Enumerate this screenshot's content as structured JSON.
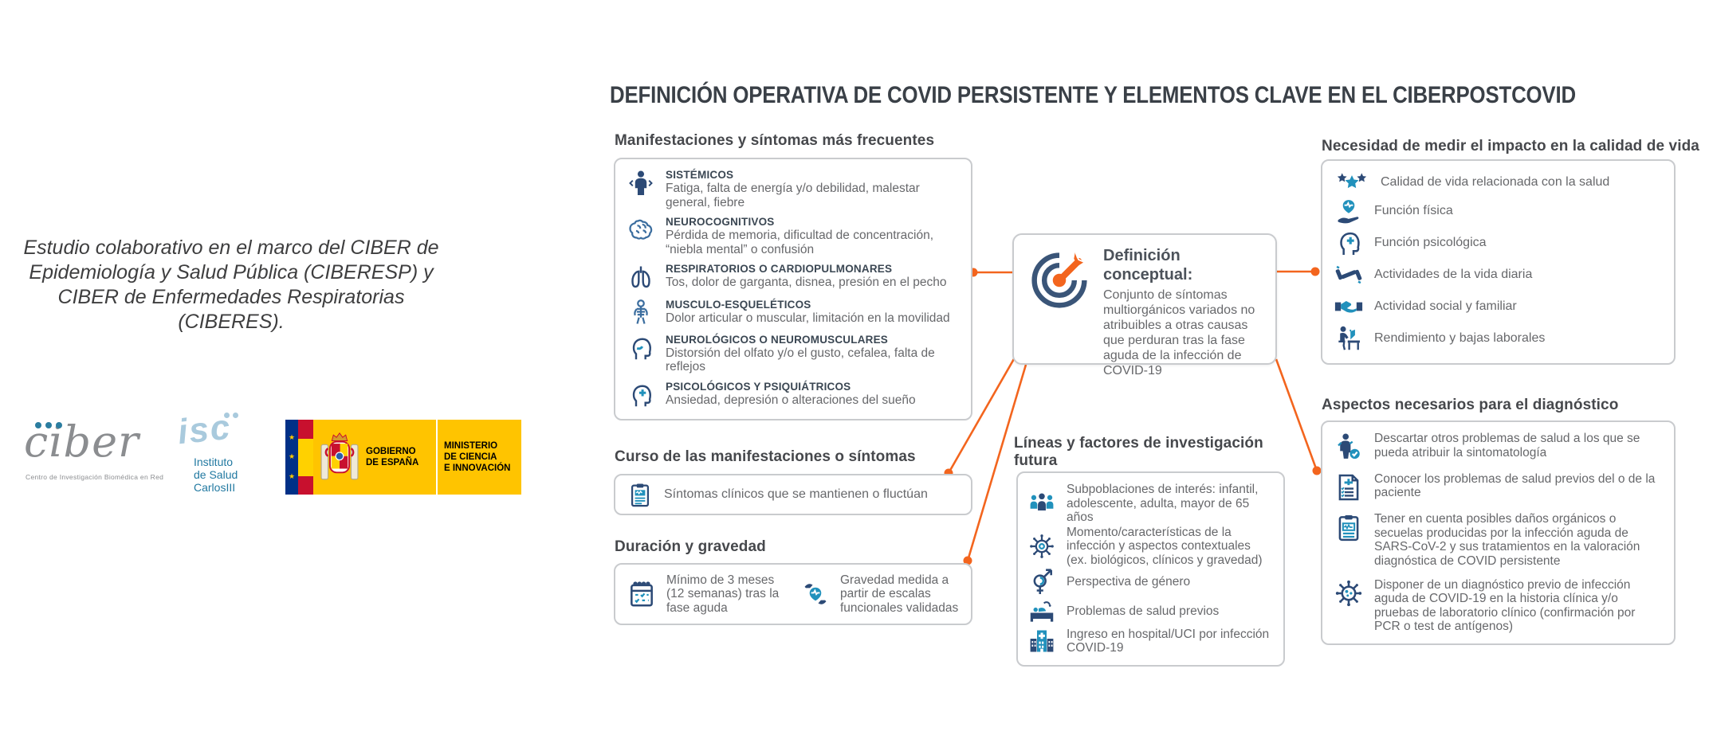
{
  "title": "DEFINICIÓN OPERATIVA DE COVID PERSISTENTE Y ELEMENTOS CLAVE EN EL CIBERPOSTCOVID",
  "colors": {
    "accent_orange": "#f3651e",
    "icon_navy": "#2c4a76",
    "icon_teal": "#2191bc",
    "header_dark": "#46484c",
    "body_gray": "#67686b",
    "box_border": "#c9cbce",
    "spain_yellow": "#ffc400",
    "spain_blue": "#003087",
    "spain_red": "#c8102e"
  },
  "left_panel": {
    "study_note": "Estudio colaborativo en el marco del CIBER de Epidemiología y Salud Pública (CIBERESP) y CIBER de Enfermedades Respiratorias (CIBERES).",
    "logos": {
      "ciber": {
        "wordmark": "ciber",
        "tagline": "Centro de Investigación Biomédica en Red"
      },
      "isciii": {
        "script": "isc",
        "line1": "Instituto",
        "line2": "de Salud",
        "line3": "CarlosIII"
      },
      "gobierno": {
        "gobierno_line1": "GOBIERNO",
        "gobierno_line2": "DE ESPAÑA",
        "ministerio_line1": "MINISTERIO",
        "ministerio_line2": "DE CIENCIA",
        "ministerio_line3": "E INNOVACIÓN",
        "flag_stars": "★"
      }
    }
  },
  "sections": {
    "manifestaciones": {
      "header": "Manifestaciones y síntomas más frecuentes",
      "items": [
        {
          "icon": "person",
          "icon_name": "systemic-person-icon",
          "label": "SISTÉMICOS",
          "desc": "Fatiga, falta de energía y/o debilidad, malestar general, fiebre"
        },
        {
          "icon": "brain",
          "icon_name": "brain-icon",
          "label": "NEUROCOGNITIVOS",
          "desc": "Pérdida de memoria, dificultad de concentración, “niebla mental” o confusión"
        },
        {
          "icon": "lungs",
          "icon_name": "lungs-icon",
          "label": "RESPIRATORIOS O CARDIOPULMONARES",
          "desc": "Tos, dolor de garganta, disnea, presión en el pecho"
        },
        {
          "icon": "skeleton",
          "icon_name": "skeleton-icon",
          "label": "MUSCULO-ESQUELÉTICOS",
          "desc": "Dolor articular o muscular, limitación en la movilidad"
        },
        {
          "icon": "headSmell",
          "icon_name": "head-smell-icon",
          "label": "NEUROLÓGICOS O NEUROMUSCULARES",
          "desc": "Distorsión del olfato y/o el gusto, cefalea, falta de reflejos"
        },
        {
          "icon": "headPsy",
          "icon_name": "head-psychology-icon",
          "label": "PSICOLÓGICOS Y PSIQUIÁTRICOS",
          "desc": "Ansiedad, depresión o alteraciones del sueño"
        }
      ]
    },
    "curso": {
      "header": "Curso de las manifestaciones o síntomas",
      "items": [
        {
          "icon": "clipboard",
          "icon_name": "clipboard-chart-icon",
          "text": "Síntomas clínicos que se mantienen o fluctúan"
        }
      ]
    },
    "duracion": {
      "header": "Duración y gravedad",
      "items": [
        {
          "icon": "calendar",
          "icon_name": "calendar-check-icon",
          "text": "Mínimo de 3 meses (12 semanas) tras la fase aguda"
        },
        {
          "icon": "heartHands",
          "icon_name": "heart-hands-icon",
          "text": "Gravedad medida a partir de escalas funcionales validadas"
        }
      ]
    },
    "definicion": {
      "icon": "target",
      "icon_name": "target-dart-icon",
      "header": "Definición conceptual:",
      "text": "Conjunto de síntomas multiorgánicos variados no atribuibles a otras causas que perduran tras la fase aguda de la infección de COVID-19"
    },
    "lineas": {
      "header": "Líneas y factores de investigación futura",
      "items": [
        {
          "icon": "people",
          "icon_name": "people-group-icon",
          "text": "Subpoblaciones de interés: infantil, adolescente, adulta, mayor de 65 años"
        },
        {
          "icon": "virus",
          "icon_name": "virus-icon",
          "text": "Momento/características de la infección y aspectos contextuales (ex. biológicos, clínicos y gravedad)"
        },
        {
          "icon": "gender",
          "icon_name": "gender-icon",
          "text": "Perspectiva de género"
        },
        {
          "icon": "bed",
          "icon_name": "patient-bed-icon",
          "text": "Problemas de salud previos"
        },
        {
          "icon": "hospital",
          "icon_name": "hospital-icon",
          "text": "Ingreso en hospital/UCI por infección COVID-19"
        }
      ]
    },
    "necesidad": {
      "header": "Necesidad de medir el impacto en la calidad de vida",
      "items": [
        {
          "icon": "stars",
          "icon_name": "stars-icon",
          "text": "Calidad de vida relacionada con la salud"
        },
        {
          "icon": "pulseHand",
          "icon_name": "heart-pulse-hand-icon",
          "text": "Función física"
        },
        {
          "icon": "headPsy",
          "icon_name": "head-psychology-icon",
          "text": "Función psicológica"
        },
        {
          "icon": "dumbbell",
          "icon_name": "dumbbell-icon",
          "text": "Actividades de la vida diaria"
        },
        {
          "icon": "handshake",
          "icon_name": "handshake-icon",
          "text": "Actividad social y familiar"
        },
        {
          "icon": "desk",
          "icon_name": "work-desk-icon",
          "text": "Rendimiento y bajas laborales"
        }
      ]
    },
    "aspectos": {
      "header": "Aspectos necesarios para el diagnóstico",
      "items": [
        {
          "icon": "personCheck",
          "icon_name": "person-check-icon",
          "text": "Descartar otros problemas de salud a los que se pueda atribuir la sintomatología"
        },
        {
          "icon": "docPlus",
          "icon_name": "document-plus-icon",
          "text": "Conocer los problemas de salud previos del o de la paciente"
        },
        {
          "icon": "clipPulse",
          "icon_name": "clipboard-pulse-icon",
          "text": "Tener en cuenta posibles daños orgánicos o secuelas producidas por la infección aguda de SARS-CoV-2 y sus tratamientos en la valoración diagnóstica de COVID persistente"
        },
        {
          "icon": "virusCheck",
          "icon_name": "virus-diagnosis-icon",
          "text": "Disponer de un diagnóstico previo de infección aguda de COVID-19 en la historia clínica y/o pruebas de laboratorio clínico (confirmación por PCR o test de antígenos)"
        }
      ]
    }
  }
}
